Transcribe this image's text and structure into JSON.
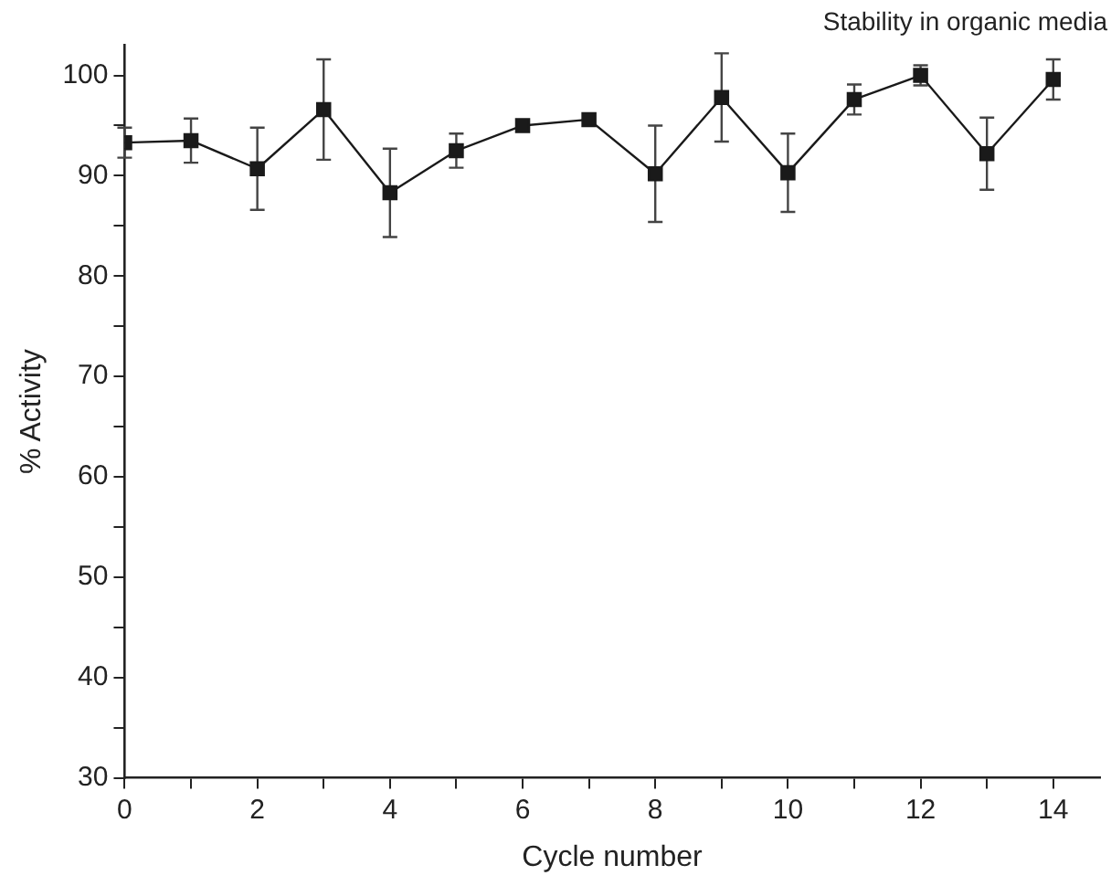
{
  "chart_data": {
    "type": "line",
    "title": "Stability in organic media",
    "xlabel": "Cycle number",
    "ylabel": "% Activity",
    "x": [
      0,
      1,
      2,
      3,
      4,
      5,
      6,
      7,
      8,
      9,
      10,
      11,
      12,
      13,
      14
    ],
    "series": [
      {
        "color": "#1a1a1a",
        "values": [
          93.3,
          93.5,
          90.7,
          96.6,
          88.3,
          92.5,
          95.0,
          95.6,
          90.2,
          97.8,
          90.3,
          97.6,
          100.0,
          92.2,
          99.6
        ],
        "errors": [
          1.5,
          2.2,
          4.1,
          5,
          4.4,
          1.7,
          null,
          null,
          4.8,
          4.4,
          3.9,
          1.5,
          1,
          3.6,
          2
        ]
      }
    ],
    "xlim": [
      0,
      14.7
    ],
    "ylim": [
      30,
      103
    ],
    "xticks": [
      0,
      {
        "value": 1,
        "label": null
      },
      2,
      {
        "value": 3,
        "label": null
      },
      4,
      {
        "value": 5,
        "label": null
      },
      6,
      {
        "value": 7,
        "label": null
      },
      8,
      {
        "value": 9,
        "label": null
      },
      10,
      {
        "value": 11,
        "label": null
      },
      12,
      {
        "value": 13,
        "label": null
      },
      14
    ],
    "yticks": [
      30,
      {
        "value": 35,
        "label": null
      },
      40,
      {
        "value": 45,
        "label": null
      },
      50,
      {
        "value": 55,
        "label": null
      },
      60,
      {
        "value": 65,
        "label": null
      },
      70,
      {
        "value": 75,
        "label": null
      },
      80,
      {
        "value": 85,
        "label": null
      },
      90,
      {
        "value": 95,
        "label": null
      },
      100
    ],
    "marker": "square",
    "line_style": "solid",
    "grid": false,
    "legend": false
  }
}
